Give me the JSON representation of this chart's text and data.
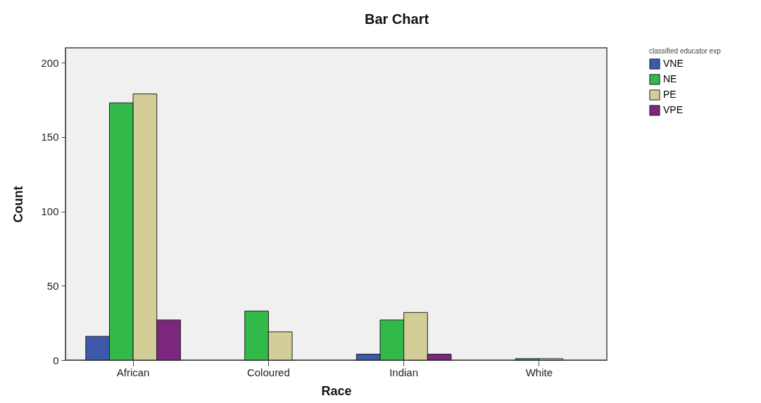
{
  "chart_data": {
    "type": "bar",
    "title": "Bar Chart",
    "xlabel": "Race",
    "ylabel": "Count",
    "legend_title": "classified educator exp",
    "categories": [
      "African",
      "Coloured",
      "Indian",
      "White"
    ],
    "series": [
      {
        "name": "VNE",
        "color": "#3e58ac",
        "values": [
          16,
          null,
          4,
          null
        ]
      },
      {
        "name": "NE",
        "color": "#31b94a",
        "values": [
          173,
          33,
          27,
          1
        ]
      },
      {
        "name": "PE",
        "color": "#d3ce97",
        "values": [
          179,
          19,
          32,
          1
        ]
      },
      {
        "name": "VPE",
        "color": "#7b277d",
        "values": [
          27,
          null,
          4,
          null
        ]
      }
    ],
    "ylim": [
      0,
      210
    ],
    "yticks": [
      0,
      50,
      100,
      150,
      200
    ],
    "grid": false,
    "legend": "top right"
  }
}
